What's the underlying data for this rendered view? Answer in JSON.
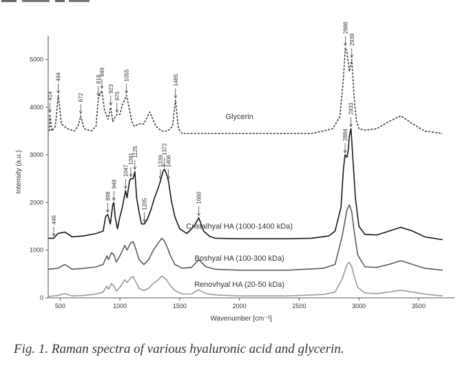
{
  "caption": "Fig. 1.  Raman spectra of various hyaluronic acid and glycerin.",
  "chart_data": {
    "type": "line",
    "xlabel": "Wavenumber [cm⁻¹]",
    "ylabel": "Intensity (a.u.)",
    "xlim": [
      400,
      3800
    ],
    "ylim": [
      0,
      5500
    ],
    "x_ticks": [
      500,
      1000,
      1500,
      2000,
      2500,
      3000,
      3500
    ],
    "y_ticks": [
      0,
      1000,
      2000,
      3000,
      4000,
      5000
    ],
    "series": [
      {
        "name": "Glycerin",
        "style": "dashed",
        "color": "#3a3a3a",
        "x": [
          410,
          414,
          430,
          460,
          484,
          510,
          560,
          620,
          650,
          672,
          700,
          760,
          800,
          820,
          849,
          870,
          900,
          923,
          940,
          960,
          975,
          1000,
          1020,
          1055,
          1080,
          1100,
          1120,
          1160,
          1200,
          1250,
          1300,
          1350,
          1400,
          1440,
          1465,
          1490,
          1520,
          1600,
          1800,
          2000,
          2200,
          2400,
          2600,
          2700,
          2780,
          2840,
          2870,
          2886,
          2900,
          2920,
          2940,
          2960,
          2980,
          3000,
          3050,
          3150,
          3250,
          3350,
          3450,
          3550,
          3700
        ],
        "y": [
          3500,
          3850,
          3500,
          3600,
          4250,
          3650,
          3550,
          3500,
          3600,
          3820,
          3550,
          3500,
          3600,
          4200,
          4350,
          3950,
          3750,
          4000,
          3700,
          3800,
          3850,
          3850,
          4050,
          4250,
          3950,
          3700,
          3600,
          3650,
          3650,
          3900,
          3600,
          3500,
          3500,
          3600,
          4150,
          3550,
          3450,
          3450,
          3450,
          3450,
          3450,
          3450,
          3450,
          3500,
          3550,
          3800,
          4600,
          5250,
          5150,
          4750,
          5000,
          4200,
          3700,
          3550,
          3520,
          3550,
          3700,
          3820,
          3650,
          3500,
          3450
        ]
      },
      {
        "name": "Cristalhyal HA (1000-1400 kDa)",
        "style": "solid",
        "color": "#151515",
        "x": [
          400,
          446,
          480,
          540,
          600,
          700,
          800,
          860,
          880,
          898,
          920,
          940,
          949,
          960,
          980,
          1000,
          1020,
          1047,
          1060,
          1080,
          1091,
          1110,
          1125,
          1140,
          1160,
          1180,
          1205,
          1230,
          1260,
          1290,
          1320,
          1339,
          1360,
          1372,
          1390,
          1406,
          1430,
          1460,
          1500,
          1560,
          1620,
          1660,
          1700,
          1750,
          1800,
          2000,
          2200,
          2400,
          2600,
          2750,
          2800,
          2850,
          2870,
          2884,
          2900,
          2910,
          2920,
          2933,
          2950,
          2970,
          3000,
          3050,
          3150,
          3250,
          3350,
          3450,
          3550,
          3700
        ],
        "y": [
          1250,
          1250,
          1350,
          1380,
          1280,
          1300,
          1350,
          1400,
          1700,
          1750,
          1550,
          1950,
          2000,
          1700,
          1450,
          1700,
          1900,
          2250,
          2100,
          2450,
          2500,
          2500,
          2650,
          2100,
          1800,
          1550,
          1550,
          1650,
          1850,
          2100,
          2300,
          2450,
          2650,
          2700,
          2600,
          2450,
          2050,
          1700,
          1450,
          1350,
          1500,
          1680,
          1400,
          1290,
          1250,
          1240,
          1240,
          1240,
          1250,
          1300,
          1400,
          1900,
          2700,
          3000,
          2950,
          3100,
          3400,
          3550,
          2900,
          2100,
          1500,
          1330,
          1320,
          1400,
          1480,
          1400,
          1280,
          1220
        ]
      },
      {
        "name": "Boshyal HA (100-300 kDa)",
        "style": "solid",
        "color": "#5a5a5a",
        "x": [
          400,
          480,
          540,
          600,
          700,
          800,
          860,
          890,
          905,
          930,
          950,
          970,
          1000,
          1040,
          1060,
          1090,
          1110,
          1130,
          1160,
          1200,
          1240,
          1280,
          1320,
          1350,
          1370,
          1390,
          1420,
          1460,
          1520,
          1600,
          1660,
          1720,
          1800,
          2000,
          2400,
          2700,
          2800,
          2860,
          2900,
          2920,
          2940,
          2960,
          2990,
          3050,
          3150,
          3250,
          3350,
          3450,
          3550,
          3700
        ],
        "y": [
          600,
          620,
          700,
          600,
          620,
          650,
          700,
          880,
          800,
          950,
          900,
          750,
          880,
          1100,
          1000,
          1150,
          1180,
          1050,
          800,
          700,
          800,
          1000,
          1150,
          1250,
          1200,
          1100,
          900,
          700,
          620,
          640,
          800,
          650,
          600,
          580,
          580,
          620,
          700,
          1300,
          1850,
          1950,
          1800,
          1400,
          900,
          650,
          640,
          700,
          780,
          700,
          620,
          580
        ]
      },
      {
        "name": "Renovhyal HA (20-50 kDa)",
        "style": "solid",
        "color": "#9a9a9a",
        "x": [
          400,
          480,
          540,
          600,
          700,
          800,
          860,
          890,
          905,
          930,
          950,
          970,
          1000,
          1040,
          1060,
          1090,
          1110,
          1130,
          1160,
          1200,
          1240,
          1280,
          1320,
          1350,
          1370,
          1390,
          1420,
          1460,
          1520,
          1600,
          1660,
          1720,
          1800,
          2000,
          2400,
          2700,
          2800,
          2860,
          2900,
          2920,
          2940,
          2960,
          2990,
          3050,
          3150,
          3250,
          3350,
          3450,
          3550,
          3700
        ],
        "y": [
          30,
          50,
          90,
          40,
          50,
          80,
          120,
          250,
          180,
          300,
          250,
          140,
          220,
          380,
          320,
          420,
          450,
          350,
          200,
          150,
          200,
          300,
          380,
          460,
          420,
          380,
          260,
          150,
          80,
          80,
          170,
          90,
          60,
          40,
          40,
          70,
          120,
          400,
          700,
          750,
          650,
          450,
          220,
          100,
          90,
          120,
          160,
          120,
          80,
          40
        ]
      }
    ],
    "peak_labels": [
      {
        "series": "Glycerin",
        "x": 414,
        "y": 3850,
        "text": "414"
      },
      {
        "series": "Glycerin",
        "x": 484,
        "y": 4250,
        "text": "484"
      },
      {
        "series": "Glycerin",
        "x": 672,
        "y": 3820,
        "text": "672"
      },
      {
        "series": "Glycerin",
        "x": 820,
        "y": 4200,
        "text": "818"
      },
      {
        "series": "Glycerin",
        "x": 849,
        "y": 4350,
        "text": "849"
      },
      {
        "series": "Glycerin",
        "x": 923,
        "y": 4000,
        "text": "923"
      },
      {
        "series": "Glycerin",
        "x": 975,
        "y": 3850,
        "text": "975"
      },
      {
        "series": "Glycerin",
        "x": 1055,
        "y": 4250,
        "text": "1055"
      },
      {
        "series": "Glycerin",
        "x": 1465,
        "y": 4150,
        "text": "1465"
      },
      {
        "series": "Glycerin",
        "x": 2886,
        "y": 5250,
        "text": "2886"
      },
      {
        "series": "Glycerin",
        "x": 2940,
        "y": 5000,
        "text": "2939"
      },
      {
        "series": "Cristalhyal HA (1000-1400 kDa)",
        "x": 446,
        "y": 1250,
        "text": "446"
      },
      {
        "series": "Cristalhyal HA (1000-1400 kDa)",
        "x": 898,
        "y": 1750,
        "text": "898"
      },
      {
        "series": "Cristalhyal HA (1000-1400 kDa)",
        "x": 949,
        "y": 2000,
        "text": "949"
      },
      {
        "series": "Cristalhyal HA (1000-1400 kDa)",
        "x": 1047,
        "y": 2250,
        "text": "1047"
      },
      {
        "series": "Cristalhyal HA (1000-1400 kDa)",
        "x": 1091,
        "y": 2500,
        "text": "1091"
      },
      {
        "series": "Cristalhyal HA (1000-1400 kDa)",
        "x": 1125,
        "y": 2650,
        "text": "1125"
      },
      {
        "series": "Cristalhyal HA (1000-1400 kDa)",
        "x": 1205,
        "y": 1550,
        "text": "1205"
      },
      {
        "series": "Cristalhyal HA (1000-1400 kDa)",
        "x": 1339,
        "y": 2450,
        "text": "1339"
      },
      {
        "series": "Cristalhyal HA (1000-1400 kDa)",
        "x": 1372,
        "y": 2700,
        "text": "1372"
      },
      {
        "series": "Cristalhyal HA (1000-1400 kDa)",
        "x": 1406,
        "y": 2450,
        "text": "1406"
      },
      {
        "series": "Cristalhyal HA (1000-1400 kDa)",
        "x": 1660,
        "y": 1680,
        "text": "1660"
      },
      {
        "series": "Cristalhyal HA (1000-1400 kDa)",
        "x": 2884,
        "y": 3000,
        "text": "2884"
      },
      {
        "series": "Cristalhyal HA (1000-1400 kDa)",
        "x": 2933,
        "y": 3550,
        "text": "2933"
      }
    ],
    "series_labels": [
      {
        "text": "Glycerin",
        "x": 2000,
        "y": 3750
      },
      {
        "text": "Cristalhyal HA (1000-1400 kDa)",
        "x": 2000,
        "y": 1450
      },
      {
        "text": "Boshyal HA (100-300 kDa)",
        "x": 2000,
        "y": 780
      },
      {
        "text": "Renovhyal HA (20-50 kDa)",
        "x": 2000,
        "y": 230
      }
    ],
    "grid": false,
    "legend": "none"
  }
}
